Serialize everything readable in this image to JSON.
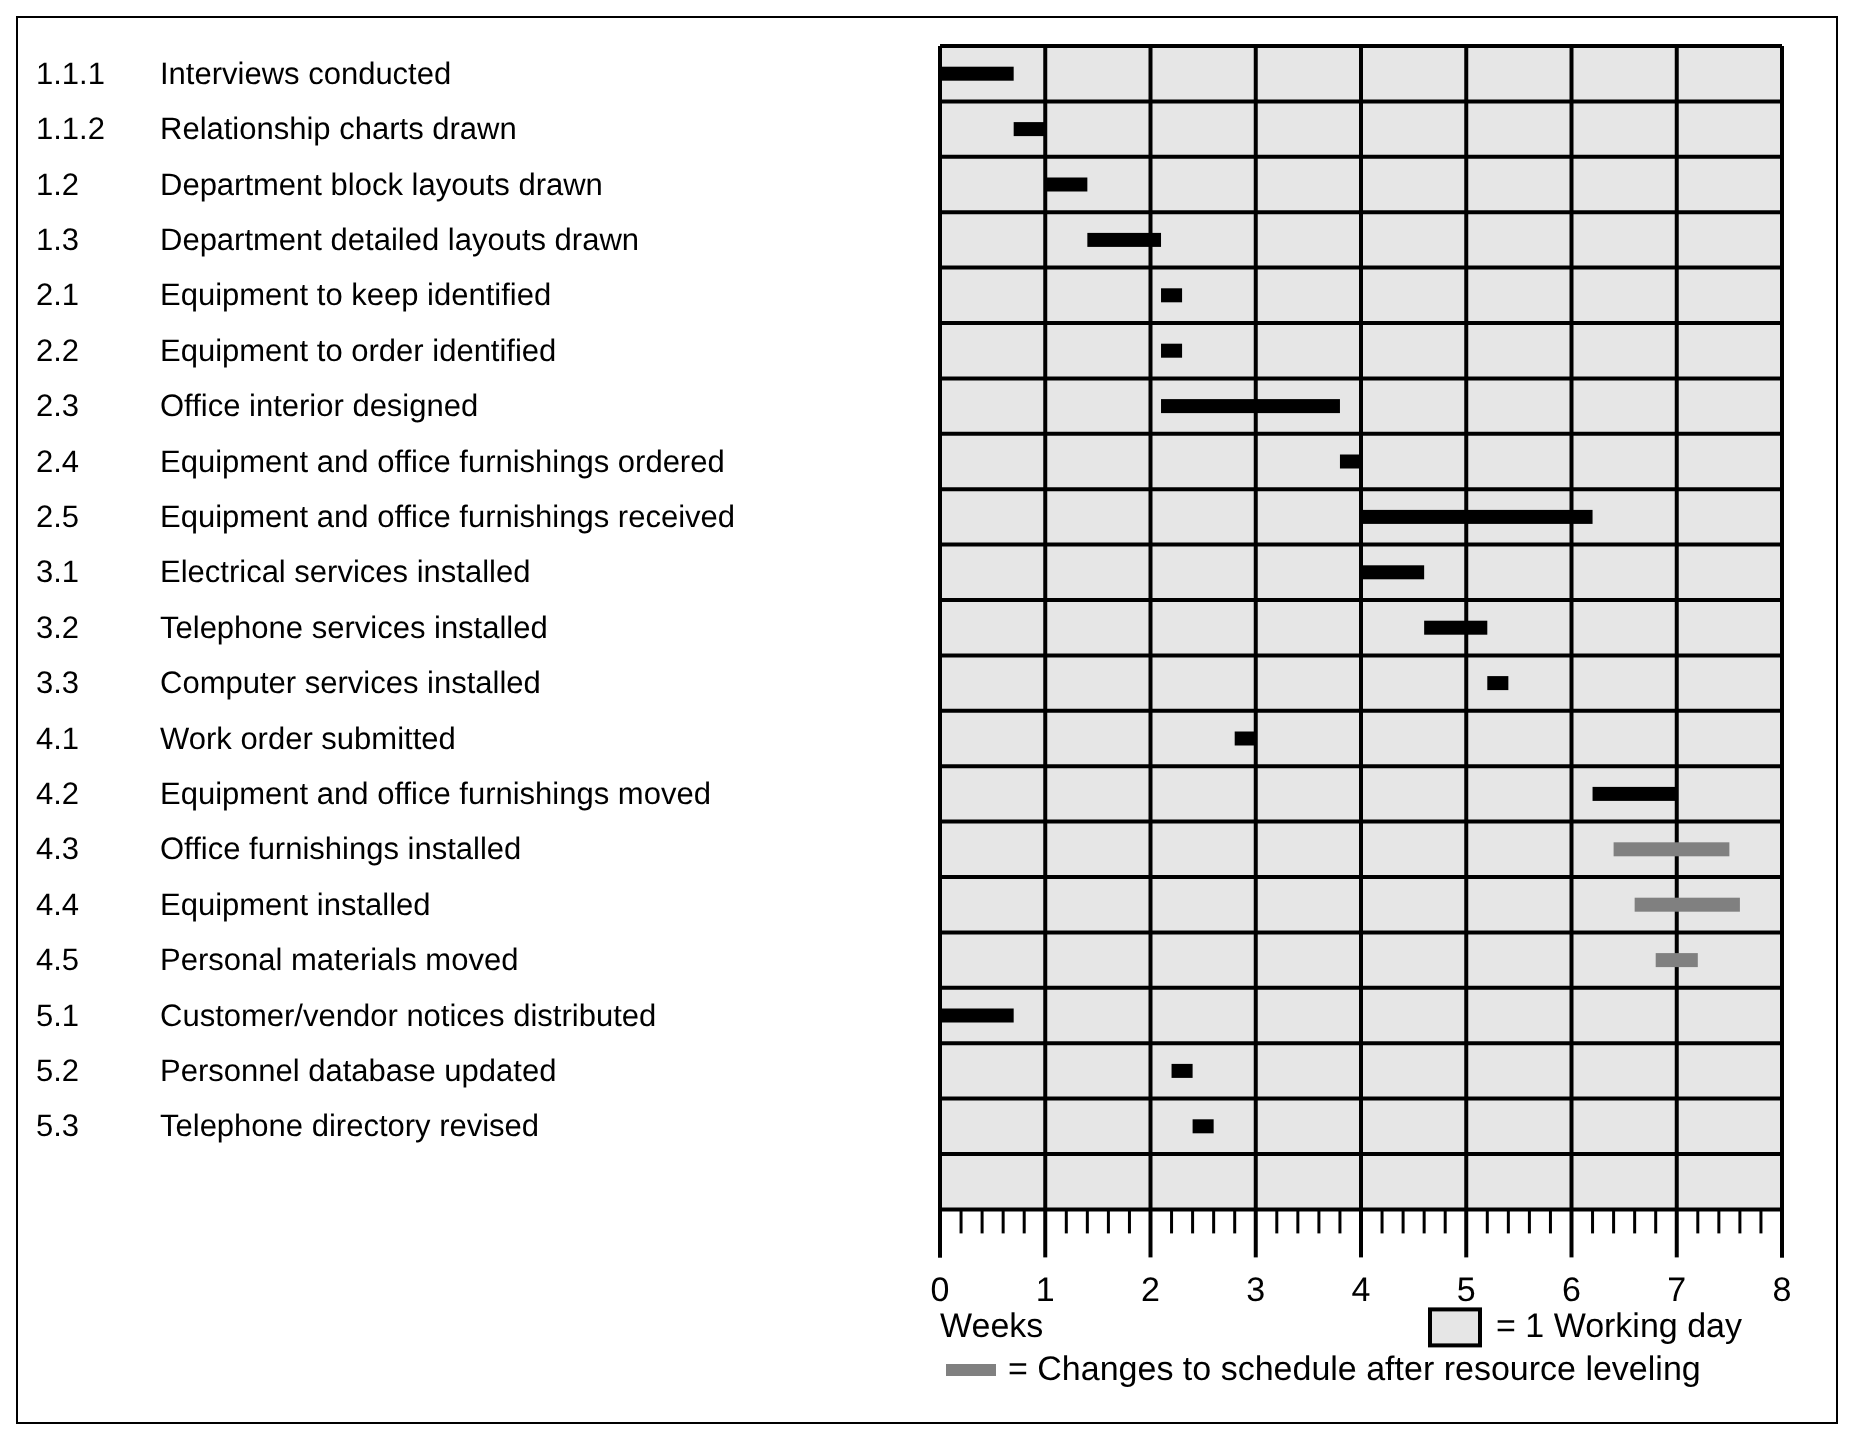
{
  "chart_data": {
    "type": "bar",
    "orientation": "horizontal",
    "xlabel": "Weeks",
    "categories": [
      "1.1.1 Interviews conducted",
      "1.1.2 Relationship charts drawn",
      "1.2 Department block layouts drawn",
      "1.3 Department detailed layouts drawn",
      "2.1 Equipment to keep identified",
      "2.2 Equipment to order identified",
      "2.3 Office interior designed",
      "2.4 Equipment and office furnishings ordered",
      "2.5 Equipment and office furnishings received",
      "3.1 Electrical services installed",
      "3.2 Telephone services installed",
      "3.3 Computer services installed",
      "4.1 Work order submitted",
      "4.2 Equipment and office furnishings moved",
      "4.3 Office furnishings installed",
      "4.4 Equipment installed",
      "4.5 Personal materials moved",
      "5.1 Customer/vendor notices distributed",
      "5.2 Personnel database updated",
      "5.3 Telephone directory revised",
      null
    ],
    "series": [
      {
        "color": "#000000",
        "base": [
          0,
          0.7,
          1.0,
          1.4,
          2.1,
          2.1,
          2.1,
          3.8,
          4.0,
          4.0,
          4.6,
          5.2,
          2.8,
          6.2,
          null,
          null,
          null,
          0,
          2.2,
          2.4,
          null
        ],
        "values": [
          0.7,
          0.3,
          0.4,
          0.7,
          0.2,
          0.2,
          1.7,
          0.2,
          2.2,
          0.6,
          0.6,
          0.2,
          0.2,
          0.8,
          null,
          null,
          null,
          0.7,
          0.2,
          0.2,
          null
        ]
      },
      {
        "name": "= Changes to schedule after resource leveling",
        "color": "#808080",
        "base": [
          null,
          null,
          null,
          null,
          null,
          null,
          null,
          null,
          null,
          null,
          null,
          null,
          null,
          null,
          6.4,
          6.6,
          6.8,
          null,
          null,
          null,
          null
        ],
        "values": [
          null,
          null,
          null,
          null,
          null,
          null,
          null,
          null,
          null,
          null,
          null,
          null,
          null,
          null,
          1.1,
          1.0,
          0.4,
          null,
          null,
          null,
          null
        ]
      }
    ],
    "xlim": [
      0,
      8
    ],
    "xticks": [
      0,
      {
        "value": 0.2,
        "label": null
      },
      {
        "value": 0.4,
        "label": null
      },
      {
        "value": 0.6,
        "label": null
      },
      {
        "value": 0.8,
        "label": null
      },
      1,
      {
        "value": 1.2,
        "label": null
      },
      {
        "value": 1.4,
        "label": null
      },
      {
        "value": 1.6,
        "label": null
      },
      {
        "value": 1.8,
        "label": null
      },
      2,
      {
        "value": 2.2,
        "label": null
      },
      {
        "value": 2.4,
        "label": null
      },
      {
        "value": 2.6,
        "label": null
      },
      {
        "value": 2.8,
        "label": null
      },
      3,
      {
        "value": 3.2,
        "label": null
      },
      {
        "value": 3.4,
        "label": null
      },
      {
        "value": 3.6,
        "label": null
      },
      {
        "value": 3.8,
        "label": null
      },
      4,
      {
        "value": 4.2,
        "label": null
      },
      {
        "value": 4.4,
        "label": null
      },
      {
        "value": 4.6,
        "label": null
      },
      {
        "value": 4.8,
        "label": null
      },
      5,
      {
        "value": 5.2,
        "label": null
      },
      {
        "value": 5.4,
        "label": null
      },
      {
        "value": 5.6,
        "label": null
      },
      {
        "value": 5.8,
        "label": null
      },
      6,
      {
        "value": 6.2,
        "label": null
      },
      {
        "value": 6.4,
        "label": null
      },
      {
        "value": 6.6,
        "label": null
      },
      {
        "value": 6.8,
        "label": null
      },
      7,
      {
        "value": 7.2,
        "label": null
      },
      {
        "value": 7.4,
        "label": null
      },
      {
        "value": 7.6,
        "label": null
      },
      {
        "value": 7.8,
        "label": null
      },
      8
    ],
    "grid": true,
    "legend": "bottom",
    "annotations": [
      "= 1 Working day"
    ]
  }
}
